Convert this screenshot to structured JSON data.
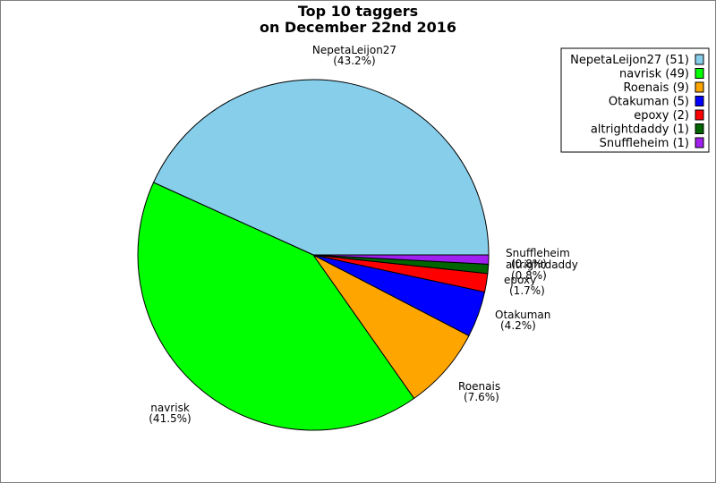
{
  "chart_data": {
    "type": "pie",
    "title": [
      "Top 10 taggers",
      "on December 22nd 2016"
    ],
    "legend_position": "top-right",
    "slices": [
      {
        "name": "NepetaLeijon27",
        "value": 51,
        "percent_label": "(43.2%)",
        "legend": "NepetaLeijon27 (51)",
        "color": "#87ceeb"
      },
      {
        "name": "navrisk",
        "value": 49,
        "percent_label": "(41.5%)",
        "legend": "navrisk (49)",
        "color": "#00ff00"
      },
      {
        "name": "Roenais",
        "value": 9,
        "percent_label": "(7.6%)",
        "legend": "Roenais (9)",
        "color": "#ffa500"
      },
      {
        "name": "Otakuman",
        "value": 5,
        "percent_label": "(4.2%)",
        "legend": "Otakuman (5)",
        "color": "#0000ff"
      },
      {
        "name": "epoxy",
        "value": 2,
        "percent_label": "(1.7%)",
        "legend": "epoxy (2)",
        "color": "#ff0000"
      },
      {
        "name": "altrightdaddy",
        "value": 1,
        "percent_label": "(0.8%)",
        "legend": "altrightdaddy (1)",
        "color": "#006400"
      },
      {
        "name": "Snuffleheim",
        "value": 1,
        "percent_label": "(0.8%)",
        "legend": "Snuffleheim (1)",
        "color": "#a020f0"
      }
    ]
  }
}
